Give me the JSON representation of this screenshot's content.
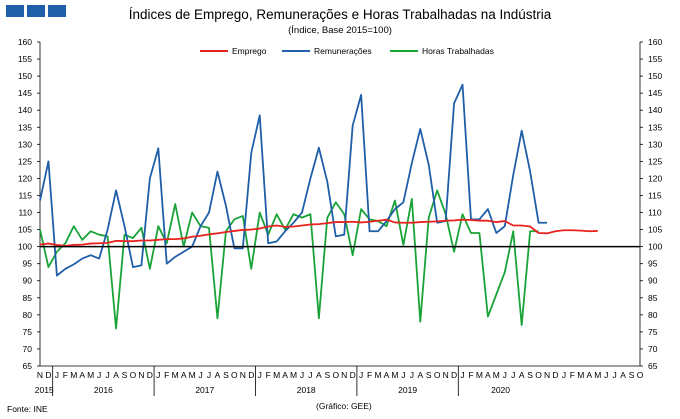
{
  "header": {
    "title": "Índices de Emprego, Remunerações e Horas Trabalhadas na Indústria",
    "subtitle": "(Índice, Base 2015=100)",
    "logo_color": "#1f5ea8"
  },
  "footer": {
    "source": "Fonte: INE",
    "credit": "(Gráfico: GEE)"
  },
  "chart_data": {
    "type": "line",
    "x_month_letters": [
      "N",
      "D",
      "J",
      "F",
      "M",
      "A",
      "M",
      "J",
      "J",
      "A",
      "S",
      "O",
      "N",
      "D",
      "J",
      "F",
      "M",
      "A",
      "M",
      "J",
      "J",
      "A",
      "S",
      "O",
      "N",
      "D",
      "J",
      "F",
      "M",
      "A",
      "M",
      "J",
      "J",
      "A",
      "S",
      "O",
      "N",
      "D",
      "J",
      "F",
      "M",
      "A",
      "M",
      "J",
      "J",
      "A",
      "S",
      "O",
      "N",
      "D",
      "J",
      "F",
      "M",
      "A",
      "M",
      "J",
      "J",
      "A",
      "S",
      "O",
      "N",
      "D",
      "J",
      "F",
      "M",
      "A",
      "M",
      "J",
      "J",
      "A",
      "S",
      "O"
    ],
    "year_labels": [
      {
        "label": "2015",
        "start": 0,
        "end": 1
      },
      {
        "label": "2016",
        "start": 2,
        "end": 13
      },
      {
        "label": "2017",
        "start": 14,
        "end": 25
      },
      {
        "label": "2018",
        "start": 26,
        "end": 37
      },
      {
        "label": "2019",
        "start": 38,
        "end": 49
      },
      {
        "label": "2020",
        "start": 50,
        "end": 59
      }
    ],
    "ylim": [
      65,
      160
    ],
    "yticks": [
      65,
      70,
      75,
      80,
      85,
      90,
      95,
      100,
      105,
      110,
      115,
      120,
      125,
      130,
      135,
      140,
      145,
      150,
      155,
      160
    ],
    "reference_line": 100,
    "legend_position": "top",
    "series": [
      {
        "name": "Emprego",
        "color": "#e8231f",
        "values": [
          100.6,
          100.9,
          100.5,
          100.2,
          100.5,
          100.6,
          100.9,
          101.0,
          101.1,
          101.7,
          101.6,
          101.6,
          101.8,
          101.8,
          102.0,
          102.2,
          102.2,
          102.4,
          102.9,
          103.2,
          103.6,
          103.9,
          104.3,
          104.6,
          104.9,
          105.0,
          105.3,
          105.9,
          106.2,
          105.8,
          105.9,
          106.2,
          106.5,
          106.6,
          106.9,
          107.2,
          107.2,
          107.3,
          107.1,
          107.3,
          107.6,
          107.9,
          107.1,
          107.0,
          107.0,
          107.2,
          107.3,
          107.4,
          107.6,
          107.7,
          107.9,
          107.8,
          107.6,
          107.6,
          107.2,
          107.5,
          106.2,
          106.2,
          105.9,
          104.0,
          103.9,
          104.5,
          104.8,
          104.8,
          104.7,
          104.5,
          104.6
        ]
      },
      {
        "name": "Remunerações",
        "color": "#1f5ea8",
        "values": [
          113.5,
          125.0,
          91.5,
          93.5,
          94.8,
          96.5,
          97.5,
          96.5,
          105.0,
          116.5,
          106.0,
          94.0,
          94.5,
          120.0,
          128.8,
          95.0,
          97.0,
          98.5,
          100.0,
          106.0,
          110.0,
          122.0,
          112.0,
          99.5,
          99.5,
          127.5,
          138.5,
          101.0,
          101.5,
          104.5,
          107.0,
          110.0,
          120.0,
          129.0,
          119.0,
          103.0,
          103.5,
          135.5,
          144.5,
          104.5,
          104.5,
          107.5,
          111.0,
          113.0,
          124.5,
          134.5,
          124.0,
          107.0,
          107.5,
          142.0,
          147.5,
          108.0,
          108.0,
          111.0,
          104.0,
          106.0,
          121.0,
          134.0,
          122.0,
          107.0,
          107.0
        ]
      },
      {
        "name": "Horas Trabalhadas",
        "color": "#1aa338",
        "values": [
          105.0,
          94.0,
          98.5,
          101.0,
          106.0,
          102.0,
          104.5,
          103.5,
          103.0,
          76.0,
          103.5,
          102.5,
          105.5,
          93.5,
          106.0,
          101.0,
          112.5,
          100.0,
          110.0,
          106.0,
          105.5,
          79.0,
          104.5,
          108.0,
          109.0,
          93.5,
          110.0,
          103.5,
          109.5,
          105.0,
          109.5,
          108.5,
          109.5,
          79.0,
          108.5,
          113.0,
          109.5,
          97.5,
          111.0,
          108.0,
          107.5,
          106.0,
          113.5,
          100.5,
          114.0,
          78.0,
          108.5,
          116.5,
          109.5,
          98.5,
          109.5,
          104.0,
          104.0,
          79.5,
          86.0,
          92.5,
          104.5,
          77.0,
          104.5,
          104.5
        ]
      }
    ]
  }
}
